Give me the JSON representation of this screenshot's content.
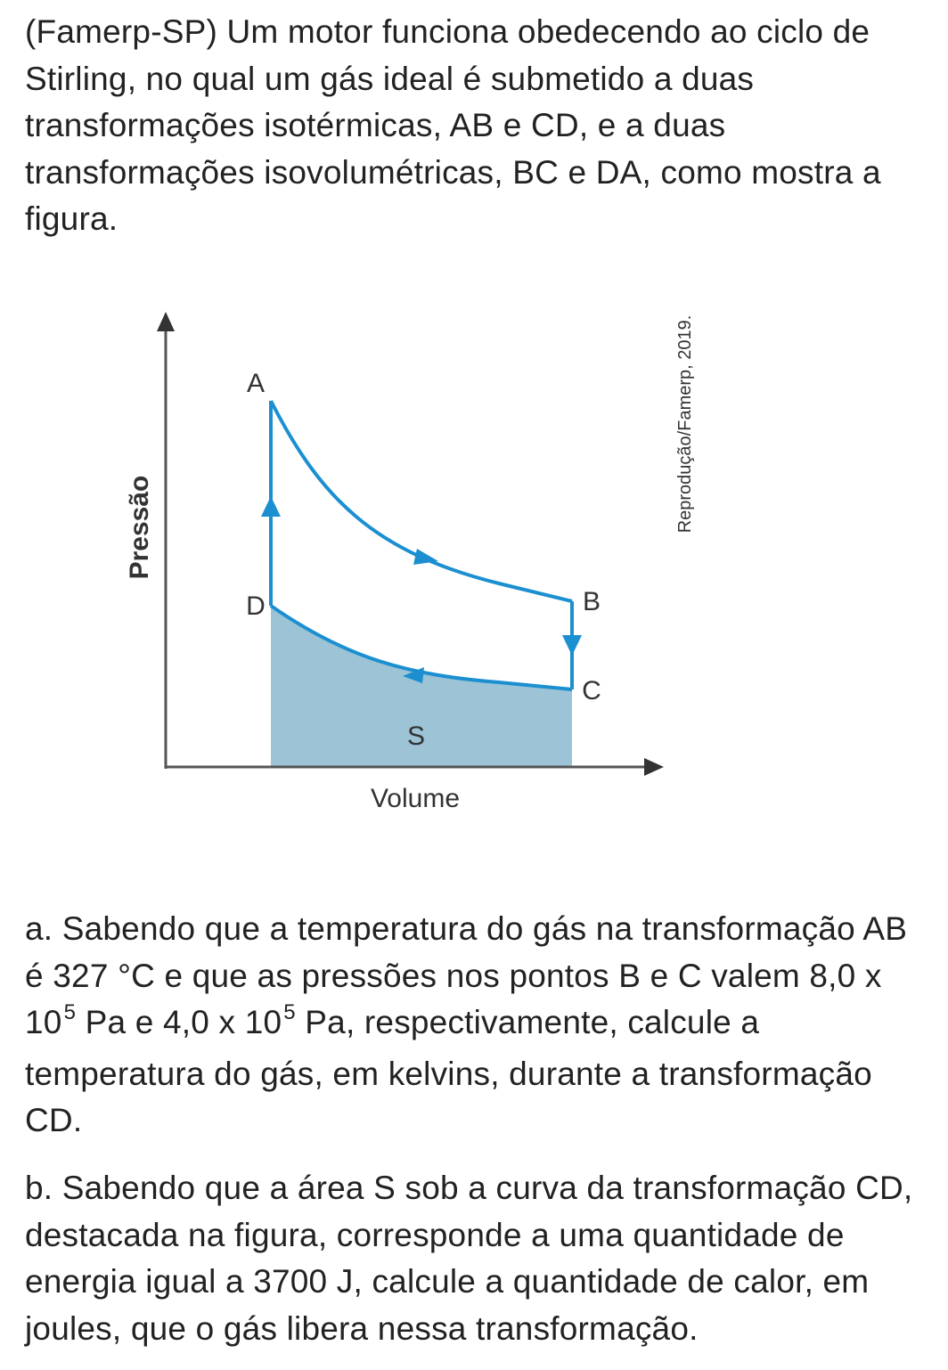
{
  "intro": "(Famerp-SP) Um motor funciona obedecendo ao ciclo de Stirling, no qual um gás ideal é submetido a duas transformações isotérmicas, AB e CD, e a duas transformações isovolumétricas, BC e DA, como mostra a figura.",
  "figure": {
    "y_axis_label": "Pressão",
    "x_axis_label": "Volume",
    "point_a": "A",
    "point_b": "B",
    "point_c": "C",
    "point_d": "D",
    "area_label": "S",
    "credit": "Reprodução/Famerp, 2019.",
    "colors": {
      "line": "#1b8fd0",
      "area": "#9cc3d6",
      "axis": "#555555"
    }
  },
  "question_a": {
    "part1": "a. Sabendo que a temperatura do gás na transformação AB é 327 °C e que as pressões nos pontos B e C valem 8,0 x 10",
    "exp1": "5",
    "part2": " Pa e 4,0 x 10",
    "exp2": "5",
    "part3": " Pa, respectivamente, calcule a temperatura do gás, em kelvins, durante a transformação CD."
  },
  "question_b": "b. Sabendo que a área S sob a curva da transformação CD, destacada na figura, corresponde a uma quantidade de energia igual a 3700 J, calcule a quantidade de calor, em joules, que o gás libera nessa transformação."
}
